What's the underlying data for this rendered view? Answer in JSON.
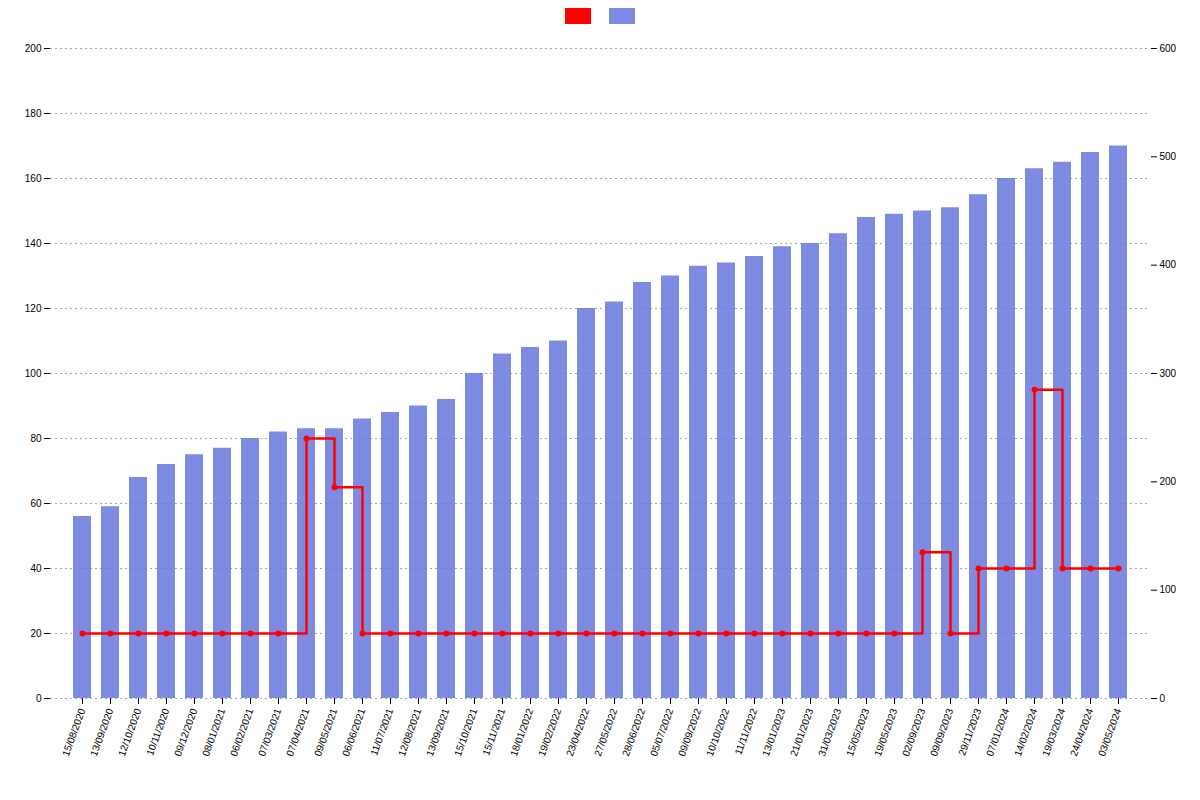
{
  "chart_data": {
    "type": "bar",
    "categories": [
      "15/08/2020",
      "13/09/2020",
      "12/10/2020",
      "10/11/2020",
      "09/12/2020",
      "08/01/2021",
      "06/02/2021",
      "07/03/2021",
      "07/04/2021",
      "09/05/2021",
      "06/06/2021",
      "11/07/2021",
      "12/08/2021",
      "13/09/2021",
      "15/10/2021",
      "15/11/2021",
      "18/01/2022",
      "19/02/2022",
      "23/04/2022",
      "27/05/2022",
      "28/06/2022",
      "05/07/2022",
      "09/09/2022",
      "10/10/2022",
      "11/11/2022",
      "13/01/2023",
      "21/01/2023",
      "31/03/2023",
      "15/05/2023",
      "19/05/2023",
      "02/09/2023",
      "09/09/2023",
      "29/11/2023",
      "07/01/2024",
      "14/02/2024",
      "19/03/2024",
      "24/04/2024",
      "03/05/2024"
    ],
    "series": [
      {
        "type": "bar",
        "color": "#6677dd",
        "values": [
          56,
          59,
          68,
          72,
          75,
          77,
          80,
          82,
          83,
          83,
          86,
          88,
          90,
          92,
          100,
          106,
          108,
          110,
          120,
          122,
          128,
          130,
          133,
          134,
          136,
          139,
          140,
          143,
          148,
          149,
          150,
          151,
          155,
          160,
          163,
          165,
          168,
          170
        ]
      },
      {
        "type": "line",
        "color": "#ff0000",
        "marker": "circle",
        "line_style": "step",
        "values": [
          20,
          20,
          20,
          20,
          20,
          20,
          20,
          20,
          80,
          65,
          20,
          20,
          20,
          20,
          20,
          20,
          20,
          20,
          20,
          20,
          20,
          20,
          20,
          20,
          20,
          20,
          20,
          20,
          20,
          20,
          45,
          20,
          40,
          40,
          95,
          40,
          40,
          40
        ]
      }
    ],
    "ylim": [
      0,
      200
    ],
    "yticks": [
      0,
      20,
      40,
      60,
      80,
      100,
      120,
      140,
      160,
      180,
      200
    ],
    "y2lim": [
      0,
      600
    ],
    "y2ticks": [
      0,
      100,
      200,
      300,
      400,
      500,
      600
    ],
    "grid": true,
    "legend": "top"
  }
}
